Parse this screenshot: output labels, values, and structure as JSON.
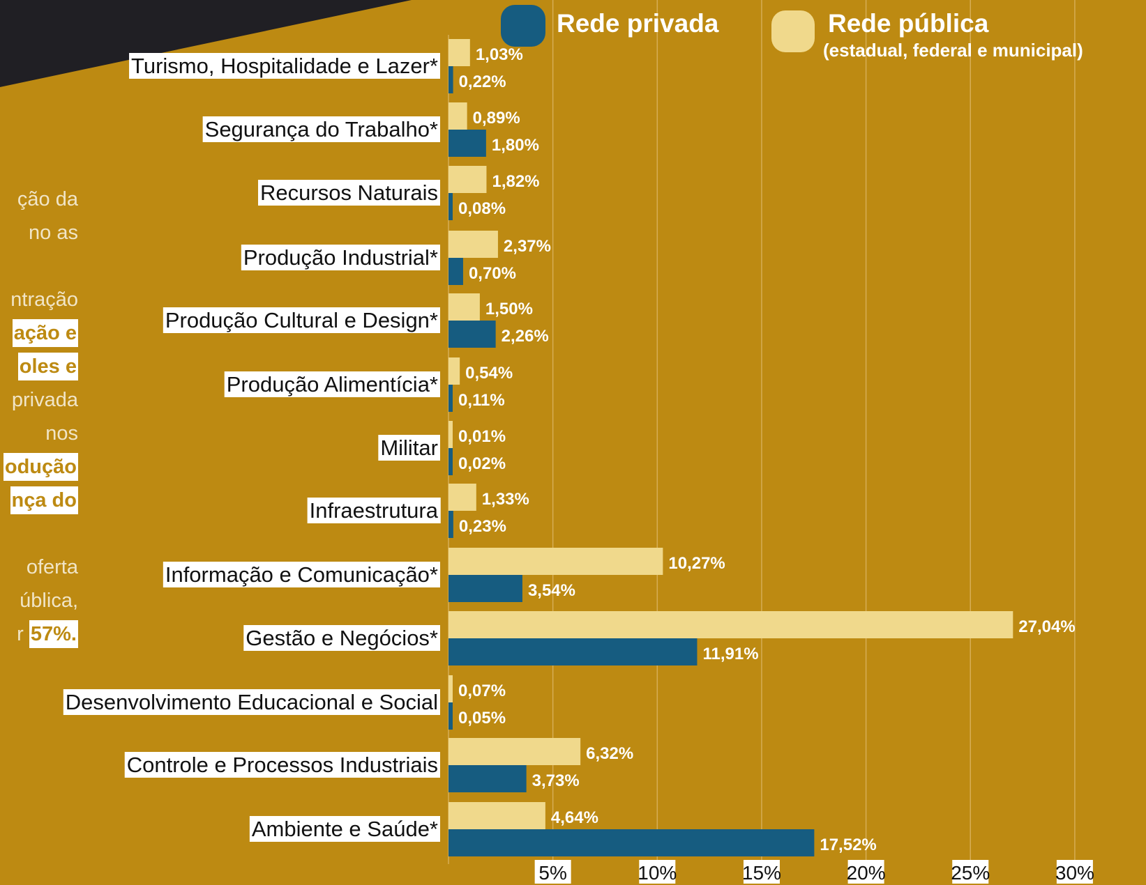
{
  "colors": {
    "background": "#bd8a12",
    "privada": "#165c80",
    "publica": "#f0d98c",
    "corner": "#201f24"
  },
  "left_text": {
    "lines": [
      {
        "text": "ção da",
        "highlight": false
      },
      {
        "text": "no as",
        "highlight": false
      },
      {
        "text": "",
        "highlight": false
      },
      {
        "text": "ntração",
        "highlight": false
      },
      {
        "text": "ação e",
        "highlight": true
      },
      {
        "text": "oles e",
        "highlight": true
      },
      {
        "text": "privada",
        "highlight": false
      },
      {
        "text": "nos",
        "highlight": false
      },
      {
        "text": "odução",
        "highlight": true
      },
      {
        "text": "nça do",
        "highlight": true
      },
      {
        "text": "",
        "highlight": false
      },
      {
        "text": "oferta",
        "highlight": false
      },
      {
        "text": "ública,",
        "highlight": false
      },
      {
        "text": "57%.",
        "highlight": true,
        "prefix": "r"
      }
    ]
  },
  "chart_data": {
    "type": "bar",
    "orientation": "horizontal",
    "categories": [
      "Turismo, Hospitalidade e Lazer*",
      "Segurança do Trabalho*",
      "Recursos Naturais",
      "Produção Industrial*",
      "Produção Cultural e Design*",
      "Produção Alimentícia*",
      "Militar",
      "Infraestrutura",
      "Informação e Comunicação*",
      "Gestão e Negócios*",
      "Desenvolvimento Educacional e Social",
      "Controle e Processos Industriais",
      "Ambiente e Saúde*"
    ],
    "series": [
      {
        "name": "Rede pública",
        "subtitle": "(estadual, federal e municipal)",
        "color": "#f0d98c",
        "values": [
          1.03,
          0.89,
          1.82,
          2.37,
          1.5,
          0.54,
          0.01,
          1.33,
          10.27,
          27.04,
          0.07,
          6.32,
          4.64
        ],
        "labels": [
          "1,03%",
          "0,89%",
          "1,82%",
          "2,37%",
          "1,50%",
          "0,54%",
          "0,01%",
          "1,33%",
          "10,27%",
          "27,04%",
          "0,07%",
          "6,32%",
          "4,64%"
        ]
      },
      {
        "name": "Rede privada",
        "color": "#165c80",
        "values": [
          0.22,
          1.8,
          0.08,
          0.7,
          2.26,
          0.11,
          0.02,
          0.23,
          3.54,
          11.91,
          0.05,
          3.73,
          17.52
        ],
        "labels": [
          "0,22%",
          "1,80%",
          "0,08%",
          "0,70%",
          "2,26%",
          "0,11%",
          "0,02%",
          "0,23%",
          "3,54%",
          "11,91%",
          "0,05%",
          "3,73%",
          "17,52%"
        ]
      }
    ],
    "xlim": [
      0,
      30
    ],
    "xticks": [
      5,
      10,
      15,
      20,
      25,
      30
    ],
    "xtick_labels": [
      "5%",
      "10%",
      "15%",
      "20%",
      "25%",
      "30%"
    ],
    "grid": true,
    "legend_position": "top"
  }
}
